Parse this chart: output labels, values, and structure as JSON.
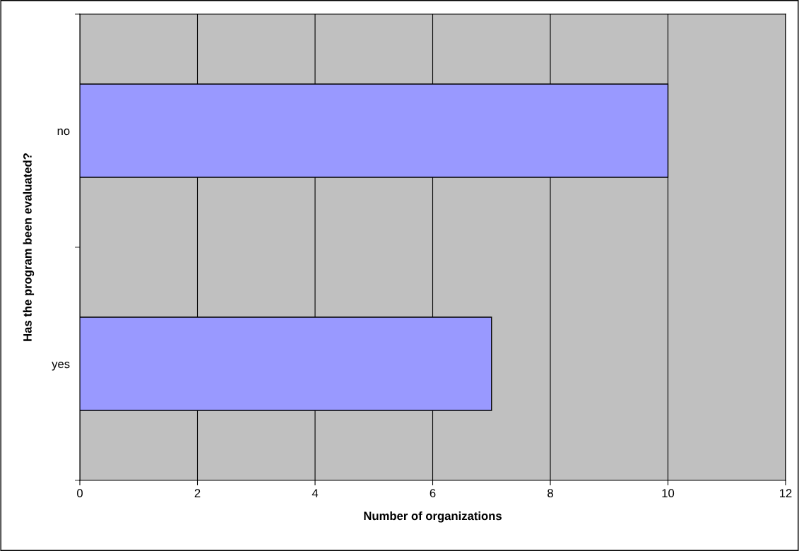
{
  "chart_data": {
    "type": "bar",
    "orientation": "horizontal",
    "xlabel": "Number of organizations",
    "ylabel": "Has the program been evaluated?",
    "categories": [
      "no",
      "yes"
    ],
    "values": [
      10,
      7
    ],
    "color": "#9999ff",
    "xlim": [
      0,
      12
    ],
    "xticks": [
      0,
      2,
      4,
      6,
      8,
      10,
      12
    ],
    "grid": "x"
  }
}
